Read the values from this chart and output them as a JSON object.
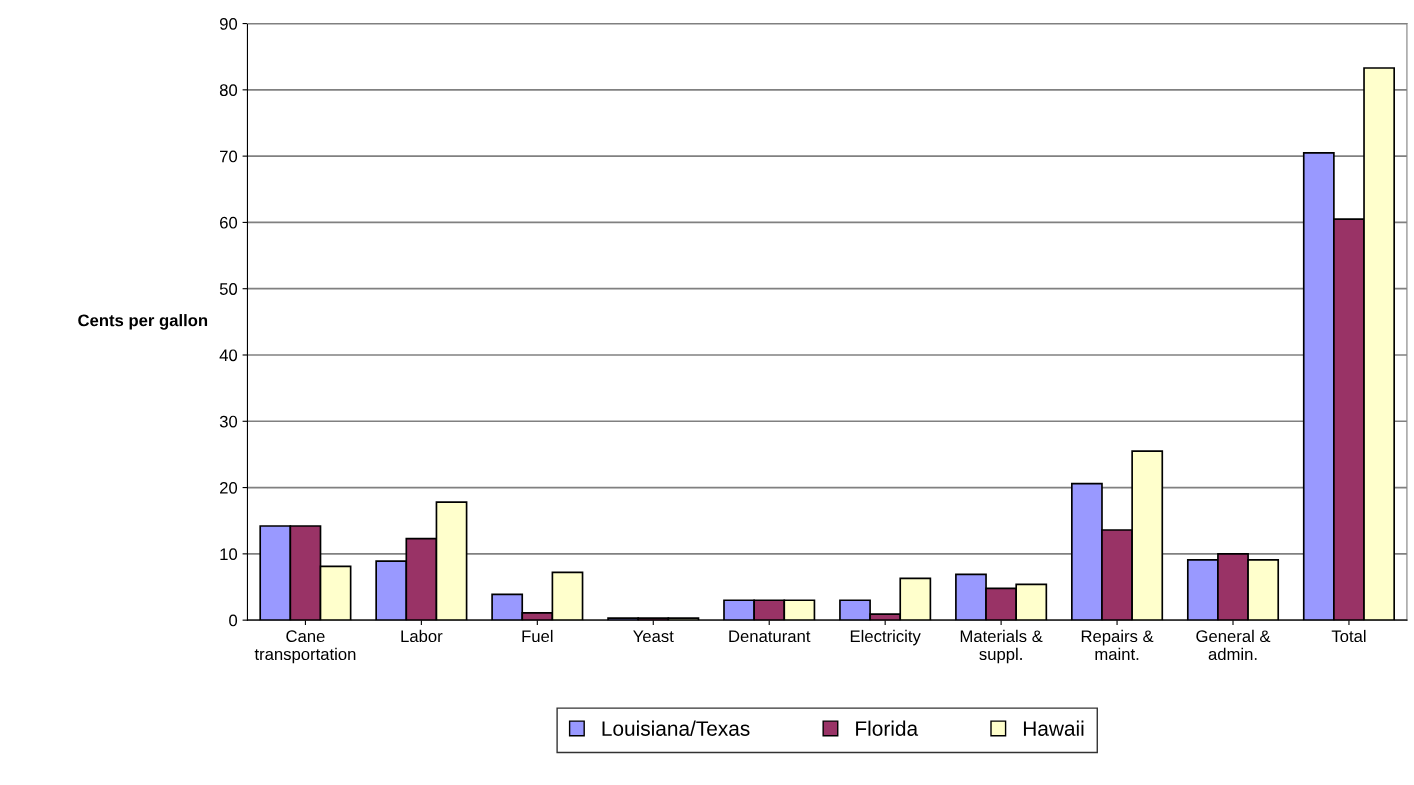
{
  "chart_data": {
    "type": "bar",
    "ylabel": "Cents per gallon",
    "categories": [
      "Cane\ntransportation",
      "Labor",
      "Fuel",
      "Yeast",
      "Denaturant",
      "Electricity",
      "Materials &\nsuppl.",
      "Repairs &\nmaint.",
      "General &\nadmin.",
      "Total"
    ],
    "series": [
      {
        "name": "Louisiana/Texas",
        "color": "#9999ff",
        "values": [
          14.2,
          8.9,
          3.9,
          0.3,
          3.0,
          3.0,
          6.9,
          20.6,
          9.1,
          70.5
        ]
      },
      {
        "name": "Florida",
        "color": "#993366",
        "values": [
          14.2,
          12.3,
          1.1,
          0.3,
          3.0,
          0.9,
          4.8,
          13.6,
          10.0,
          60.5
        ]
      },
      {
        "name": "Hawaii",
        "color": "#ffffcc",
        "values": [
          8.1,
          17.8,
          7.2,
          0.3,
          3.0,
          6.3,
          5.4,
          25.5,
          9.1,
          83.3
        ]
      }
    ],
    "ylim": [
      0,
      90
    ],
    "yticks": [
      0,
      10,
      20,
      30,
      40,
      50,
      60,
      70,
      80,
      90
    ],
    "grid": "y",
    "legend": "bottom"
  }
}
